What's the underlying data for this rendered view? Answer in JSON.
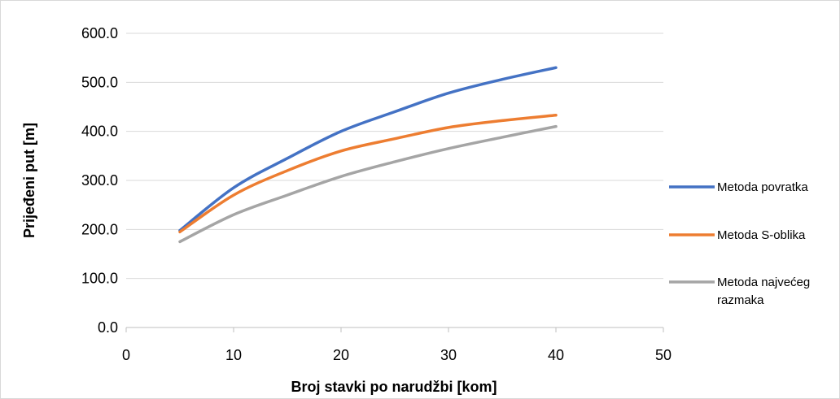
{
  "chart_data": {
    "type": "scatter",
    "title": "",
    "xlabel": "Broj stavki po narudžbi [kom]",
    "ylabel": "Prijeđeni put [m]",
    "xlim": [
      0,
      50
    ],
    "ylim": [
      0,
      600
    ],
    "x_ticks": [
      "0",
      "10",
      "20",
      "30",
      "40",
      "50"
    ],
    "y_ticks": [
      "0.0",
      "100.0",
      "200.0",
      "300.0",
      "400.0",
      "500.0",
      "600.0"
    ],
    "grid": "horizontal",
    "legend_position": "right",
    "series": [
      {
        "name": "Metoda povratka",
        "color": "#4472c4",
        "points": [
          [
            5,
            198
          ],
          [
            10,
            285
          ],
          [
            15,
            345
          ],
          [
            20,
            400
          ],
          [
            25,
            440
          ],
          [
            30,
            478
          ],
          [
            35,
            506
          ],
          [
            40,
            530
          ]
        ]
      },
      {
        "name": "Metoda S-oblika",
        "color": "#ed7d31",
        "points": [
          [
            5,
            195
          ],
          [
            10,
            270
          ],
          [
            15,
            320
          ],
          [
            20,
            360
          ],
          [
            25,
            385
          ],
          [
            30,
            408
          ],
          [
            35,
            422
          ],
          [
            40,
            433
          ]
        ]
      },
      {
        "name_lines": [
          "Metoda najvećeg",
          "razmaka"
        ],
        "color": "#a5a5a5",
        "points": [
          [
            5,
            175
          ],
          [
            10,
            230
          ],
          [
            15,
            270
          ],
          [
            20,
            308
          ],
          [
            25,
            338
          ],
          [
            30,
            365
          ],
          [
            35,
            388
          ],
          [
            40,
            410
          ]
        ]
      }
    ]
  }
}
